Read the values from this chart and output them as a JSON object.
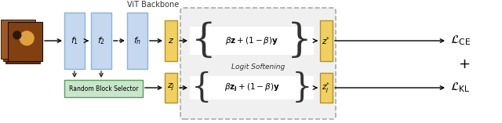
{
  "bg_color": "#ffffff",
  "blue_block_color": "#c5d8f0",
  "blue_block_edge": "#8ab4d8",
  "yellow_block_color": "#f0d060",
  "yellow_block_edge": "#b89020",
  "green_box_color": "#c8e6c9",
  "green_box_edge": "#5a9e5a",
  "logit_box_color": "#f0f0f0",
  "logit_box_edge": "#aaaaaa",
  "formula_box_color": "#f8f8f8",
  "formula_box_edge": "#999999",
  "arrow_color": "#000000",
  "text_color": "#000000",
  "loss_ce": "$\\mathcal{L}_{\\mathrm{CE}}$",
  "loss_kl": "$\\mathcal{L}_{\\mathrm{KL}}$",
  "logit_label": "Logit Softening",
  "rbs_label": "Random Block Selector",
  "vit_label": "ViT Backbone",
  "formula_top": "$\\beta\\mathbf{z}+(1-\\beta)\\mathbf{y}$",
  "formula_bot": "$\\beta\\mathbf{z_j}+(1-\\beta)\\mathbf{y}$",
  "z_label": "$z$",
  "zj_label": "$z_j$",
  "zstar_label": "$z^{*}$",
  "zjstar_label": "$z_j^{*}$",
  "f1_label": "$f_1$",
  "f2_label": "$f_2$",
  "fn_label": "$f_n$"
}
